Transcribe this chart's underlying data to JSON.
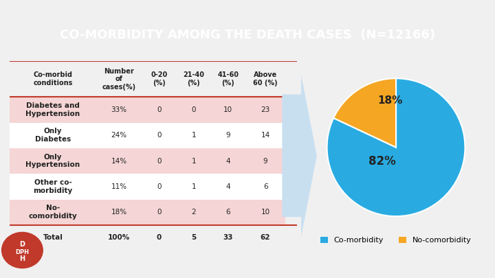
{
  "title": "CO-MORBIDITY AMONG THE DEATH CASES  (N=12166)",
  "title_bg": "#3a7d44",
  "title_color": "#ffffff",
  "bg_color": "#f0f0f0",
  "top_bar_color": "#c0392b",
  "bottom_bar_color": "#2e7d32",
  "table_headers": [
    "Co-morbid\nconditions",
    "Number\nof\ncases(%)",
    "0-20\n(%)",
    "21-40\n(%)",
    "41-60\n(%)",
    "Above\n60 (%)"
  ],
  "table_rows": [
    [
      "Diabetes and\nHypertension",
      "33%",
      "0",
      "0",
      "10",
      "23"
    ],
    [
      "Only\nDiabetes",
      "24%",
      "0",
      "1",
      "9",
      "14"
    ],
    [
      "Only\nHypertension",
      "14%",
      "0",
      "1",
      "4",
      "9"
    ],
    [
      "Other co-\nmorbidity",
      "11%",
      "0",
      "1",
      "4",
      "6"
    ],
    [
      "No-\ncomorbidity",
      "18%",
      "0",
      "2",
      "6",
      "10"
    ]
  ],
  "total_row": [
    "Total",
    "100%",
    "0",
    "5",
    "33",
    "62"
  ],
  "row_colors": [
    "#f5d5d5",
    "#ffffff",
    "#f5d5d5",
    "#ffffff",
    "#f5d5d5"
  ],
  "table_line_color": "#c0392b",
  "pie_values": [
    82,
    18
  ],
  "pie_colors": [
    "#29abe2",
    "#f5a623"
  ],
  "legend_labels": [
    "Co-morbidity",
    "No-comorbidity"
  ],
  "arrow_color": "#c8dff0",
  "dph_bg": "#c0392b"
}
